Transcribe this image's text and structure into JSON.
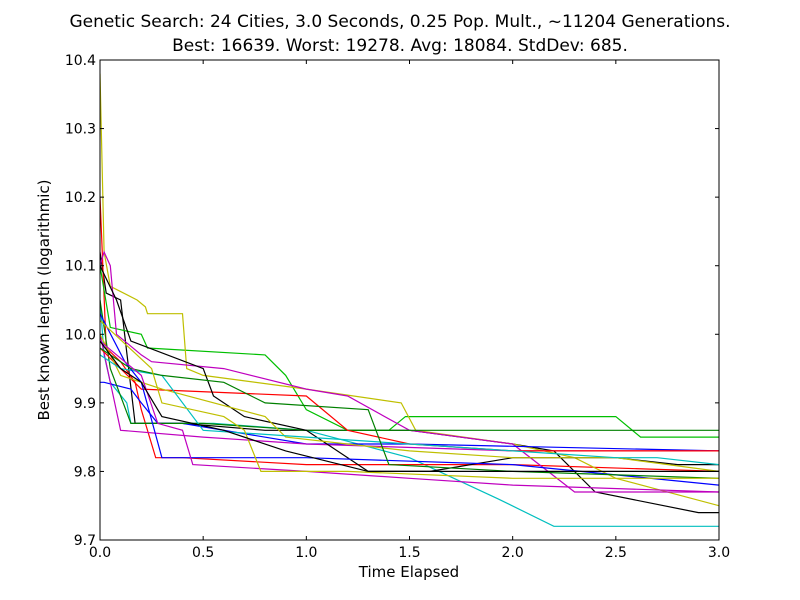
{
  "chart_data": {
    "type": "line",
    "title": [
      "Genetic Search: 24 Cities, 3.0 Seconds, 0.25 Pop. Mult., ~11204 Generations.",
      "Best: 16639. Worst: 19278. Avg: 18084. StdDev: 685."
    ],
    "xlabel": "Time Elapsed",
    "ylabel": "Best known length (logarithmic)",
    "xlim": [
      0.0,
      3.0
    ],
    "ylim": [
      9.7,
      10.4
    ],
    "xticks": [
      0.0,
      0.5,
      1.0,
      1.5,
      2.0,
      2.5,
      3.0
    ],
    "xtick_labels": [
      "0.0",
      "0.5",
      "1.0",
      "1.5",
      "2.0",
      "2.5",
      "3.0"
    ],
    "yticks": [
      9.7,
      9.8,
      9.9,
      10.0,
      10.1,
      10.2,
      10.3,
      10.4
    ],
    "ytick_labels": [
      "9.7",
      "9.8",
      "9.9",
      "10.0",
      "10.1",
      "10.2",
      "10.3",
      "10.4"
    ],
    "grid": false,
    "legend": "none",
    "series": [
      {
        "color": "#00bfbf",
        "points": [
          [
            0,
            10.05
          ],
          [
            0.02,
            9.97
          ],
          [
            0.05,
            9.93
          ],
          [
            0.13,
            9.9
          ],
          [
            0.15,
            9.87
          ],
          [
            0.55,
            9.87
          ],
          [
            1.0,
            9.86
          ],
          [
            1.5,
            9.82
          ],
          [
            1.93,
            9.76
          ],
          [
            2.2,
            9.72
          ],
          [
            3.0,
            9.72
          ]
        ]
      },
      {
        "color": "#000000",
        "points": [
          [
            0,
            10.12
          ],
          [
            0.03,
            10.06
          ],
          [
            0.1,
            10.05
          ],
          [
            0.17,
            9.87
          ],
          [
            0.4,
            9.87
          ],
          [
            0.8,
            9.86
          ],
          [
            1.5,
            9.86
          ],
          [
            2.0,
            9.84
          ],
          [
            2.2,
            9.83
          ],
          [
            2.4,
            9.77
          ],
          [
            2.9,
            9.74
          ],
          [
            3.0,
            9.74
          ]
        ]
      },
      {
        "color": "#ff0000",
        "points": [
          [
            0,
            10.2
          ],
          [
            0.03,
            9.98
          ],
          [
            0.1,
            9.96
          ],
          [
            0.17,
            9.93
          ],
          [
            0.2,
            9.89
          ],
          [
            0.27,
            9.82
          ],
          [
            0.4,
            9.82
          ],
          [
            1.0,
            9.81
          ],
          [
            1.5,
            9.81
          ],
          [
            2.0,
            9.81
          ],
          [
            3.0,
            9.8
          ]
        ]
      },
      {
        "color": "#00bf00",
        "points": [
          [
            0,
            10.1
          ],
          [
            0.05,
            10.01
          ],
          [
            0.2,
            10.0
          ],
          [
            0.23,
            9.98
          ],
          [
            0.8,
            9.97
          ],
          [
            0.9,
            9.94
          ],
          [
            1.0,
            9.89
          ],
          [
            1.2,
            9.86
          ],
          [
            1.4,
            9.86
          ],
          [
            1.48,
            9.88
          ],
          [
            2.5,
            9.88
          ],
          [
            2.62,
            9.85
          ],
          [
            3.0,
            9.85
          ]
        ]
      },
      {
        "color": "#bfbf00",
        "points": [
          [
            0,
            10.38
          ],
          [
            0.02,
            10.12
          ],
          [
            0.05,
            10.07
          ],
          [
            0.18,
            10.05
          ],
          [
            0.22,
            10.04
          ],
          [
            0.23,
            10.03
          ],
          [
            0.4,
            10.03
          ],
          [
            0.42,
            9.95
          ],
          [
            0.5,
            9.94
          ],
          [
            1.0,
            9.92
          ],
          [
            1.46,
            9.9
          ],
          [
            1.53,
            9.86
          ],
          [
            2.0,
            9.84
          ],
          [
            2.3,
            9.82
          ],
          [
            2.5,
            9.79
          ],
          [
            3.0,
            9.75
          ]
        ]
      },
      {
        "color": "#bf00bf",
        "points": [
          [
            0,
            10.1
          ],
          [
            0.02,
            10.12
          ],
          [
            0.05,
            10.1
          ],
          [
            0.08,
            10.0
          ],
          [
            0.2,
            9.97
          ],
          [
            0.25,
            9.96
          ],
          [
            0.6,
            9.95
          ],
          [
            1.0,
            9.92
          ],
          [
            1.2,
            9.91
          ],
          [
            1.5,
            9.86
          ],
          [
            2.0,
            9.84
          ],
          [
            2.3,
            9.77
          ],
          [
            3.0,
            9.77
          ]
        ]
      },
      {
        "color": "#0000ff",
        "points": [
          [
            0,
            9.93
          ],
          [
            0.02,
            9.93
          ],
          [
            0.15,
            9.92
          ],
          [
            0.2,
            9.9
          ],
          [
            0.28,
            9.87
          ],
          [
            0.4,
            9.87
          ],
          [
            1.0,
            9.84
          ],
          [
            1.5,
            9.84
          ],
          [
            3.0,
            9.83
          ]
        ]
      },
      {
        "color": "#008000",
        "points": [
          [
            0,
            10.05
          ],
          [
            0.05,
            9.95
          ],
          [
            0.15,
            9.87
          ],
          [
            0.5,
            9.87
          ],
          [
            1.0,
            9.86
          ],
          [
            2.0,
            9.86
          ],
          [
            3.0,
            9.86
          ]
        ]
      },
      {
        "color": "#bf00bf",
        "points": [
          [
            0,
            10.0
          ],
          [
            0.1,
            9.86
          ],
          [
            0.5,
            9.85
          ],
          [
            1.0,
            9.84
          ],
          [
            2.0,
            9.83
          ],
          [
            3.0,
            9.83
          ]
        ]
      },
      {
        "color": "#ff0000",
        "points": [
          [
            0,
            9.98
          ],
          [
            0.1,
            9.95
          ],
          [
            0.2,
            9.92
          ],
          [
            1.0,
            9.91
          ],
          [
            1.2,
            9.86
          ],
          [
            1.5,
            9.84
          ],
          [
            2.0,
            9.83
          ],
          [
            3.0,
            9.83
          ]
        ]
      },
      {
        "color": "#000000",
        "points": [
          [
            0,
            10.1
          ],
          [
            0.08,
            10.05
          ],
          [
            0.15,
            9.99
          ],
          [
            0.5,
            9.95
          ],
          [
            0.55,
            9.91
          ],
          [
            0.7,
            9.88
          ],
          [
            1.0,
            9.86
          ],
          [
            1.3,
            9.8
          ],
          [
            1.6,
            9.8
          ],
          [
            2.0,
            9.82
          ],
          [
            2.5,
            9.82
          ],
          [
            2.8,
            9.81
          ],
          [
            3.0,
            9.81
          ]
        ]
      },
      {
        "color": "#bfbf00",
        "points": [
          [
            0,
            10.0
          ],
          [
            0.1,
            9.94
          ],
          [
            0.3,
            9.92
          ],
          [
            0.8,
            9.88
          ],
          [
            0.9,
            9.85
          ],
          [
            1.5,
            9.83
          ],
          [
            2.0,
            9.82
          ],
          [
            2.5,
            9.82
          ],
          [
            3.0,
            9.8
          ]
        ]
      },
      {
        "color": "#00bfbf",
        "points": [
          [
            0,
            9.97
          ],
          [
            0.1,
            9.95
          ],
          [
            0.3,
            9.94
          ],
          [
            0.5,
            9.86
          ],
          [
            1.0,
            9.85
          ],
          [
            2.0,
            9.83
          ],
          [
            2.5,
            9.82
          ],
          [
            2.7,
            9.82
          ],
          [
            3.0,
            9.81
          ]
        ]
      },
      {
        "color": "#0000ff",
        "points": [
          [
            0,
            10.03
          ],
          [
            0.12,
            9.96
          ],
          [
            0.2,
            9.93
          ],
          [
            0.3,
            9.82
          ],
          [
            1.0,
            9.82
          ],
          [
            2.0,
            9.81
          ],
          [
            3.0,
            9.78
          ]
        ]
      },
      {
        "color": "#008000",
        "points": [
          [
            0,
            9.98
          ],
          [
            0.15,
            9.95
          ],
          [
            0.3,
            9.94
          ],
          [
            0.6,
            9.93
          ],
          [
            0.8,
            9.9
          ],
          [
            1.3,
            9.89
          ],
          [
            1.4,
            9.81
          ],
          [
            2.0,
            9.8
          ],
          [
            3.0,
            9.79
          ]
        ]
      },
      {
        "color": "#bf00bf",
        "points": [
          [
            0,
            9.99
          ],
          [
            0.2,
            9.94
          ],
          [
            0.28,
            9.87
          ],
          [
            0.4,
            9.86
          ],
          [
            0.45,
            9.81
          ],
          [
            1.0,
            9.8
          ],
          [
            1.5,
            9.79
          ],
          [
            2.0,
            9.78
          ],
          [
            3.0,
            9.77
          ]
        ]
      },
      {
        "color": "#bfbf00",
        "points": [
          [
            0,
            10.02
          ],
          [
            0.25,
            9.95
          ],
          [
            0.3,
            9.9
          ],
          [
            0.6,
            9.88
          ],
          [
            0.7,
            9.86
          ],
          [
            0.78,
            9.8
          ],
          [
            1.2,
            9.8
          ],
          [
            2.0,
            9.79
          ],
          [
            3.0,
            9.79
          ]
        ]
      },
      {
        "color": "#000000",
        "points": [
          [
            0,
            9.99
          ],
          [
            0.1,
            9.95
          ],
          [
            0.2,
            9.93
          ],
          [
            0.3,
            9.88
          ],
          [
            0.6,
            9.86
          ],
          [
            0.9,
            9.83
          ],
          [
            1.3,
            9.8
          ],
          [
            2.0,
            9.8
          ],
          [
            3.0,
            9.8
          ]
        ]
      }
    ]
  }
}
